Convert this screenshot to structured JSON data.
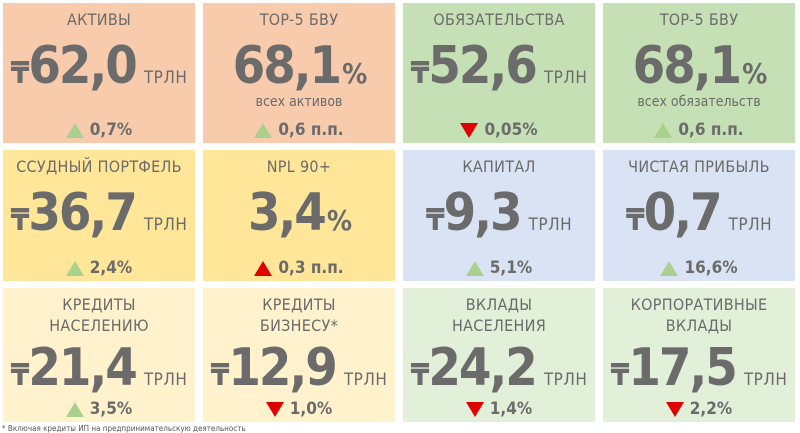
{
  "cards": [
    {
      "title": "АКТИВЫ",
      "currency": "₸",
      "value": "62,0",
      "unit": "ТРЛН",
      "change": "0,7%",
      "dir": "up"
    },
    {
      "title": "TOP-5 БВУ",
      "value": "68,1",
      "pct": "%",
      "sub": "всех активов",
      "change": "0,6 п.п.",
      "dir": "up"
    },
    {
      "title": "ОБЯЗАТЕЛЬСТВА",
      "currency": "₸",
      "value": "52,6",
      "unit": "ТРЛН",
      "change": "0,05%",
      "dir": "down"
    },
    {
      "title": "TOP-5 БВУ",
      "value": "68,1",
      "pct": "%",
      "sub": "всех обязательств",
      "change": "0,6 п.п.",
      "dir": "up"
    },
    {
      "title": "ССУДНЫЙ ПОРТФЕЛЬ",
      "currency": "₸",
      "value": "36,7",
      "unit": "ТРЛН",
      "change": "2,4%",
      "dir": "up"
    },
    {
      "title": "NPL 90+",
      "value": "3,4",
      "pct": "%",
      "change": "0,3 п.п.",
      "dir": "up-red"
    },
    {
      "title": "КАПИТАЛ",
      "currency": "₸",
      "value": "9,3",
      "unit": "ТРЛН",
      "change": "5,1%",
      "dir": "up"
    },
    {
      "title": "ЧИСТАЯ ПРИБЫЛЬ",
      "currency": "₸",
      "value": "0,7",
      "unit": "ТРЛН",
      "change": "16,6%",
      "dir": "up"
    },
    {
      "title": "КРЕДИТЫ",
      "title2": "НАСЕЛЕНИЮ",
      "currency": "₸",
      "value": "21,4",
      "unit": "ТРЛН",
      "change": "3,5%",
      "dir": "up"
    },
    {
      "title": "КРЕДИТЫ",
      "title2": "БИЗНЕСУ*",
      "currency": "₸",
      "value": "12,9",
      "unit": "ТРЛН",
      "change": "1,0%",
      "dir": "down"
    },
    {
      "title": "ВКЛАДЫ",
      "title2": "НАСЕЛЕНИЯ",
      "currency": "₸",
      "value": "24,2",
      "unit": "ТРЛН",
      "change": "1,4%",
      "dir": "down"
    },
    {
      "title": "КОРПОРАТИВНЫЕ",
      "title2": "ВКЛАДЫ",
      "currency": "₸",
      "value": "17,5",
      "unit": "ТРЛН",
      "change": "2,2%",
      "dir": "down"
    }
  ],
  "colors": [
    "peach",
    "peach",
    "green",
    "green",
    "yellow",
    "yellow",
    "blue",
    "blue",
    "lyellow",
    "lyellow",
    "lgreen",
    "lgreen"
  ],
  "footnote": "* Включая кредиты ИП на предпринимательскую деятельность"
}
